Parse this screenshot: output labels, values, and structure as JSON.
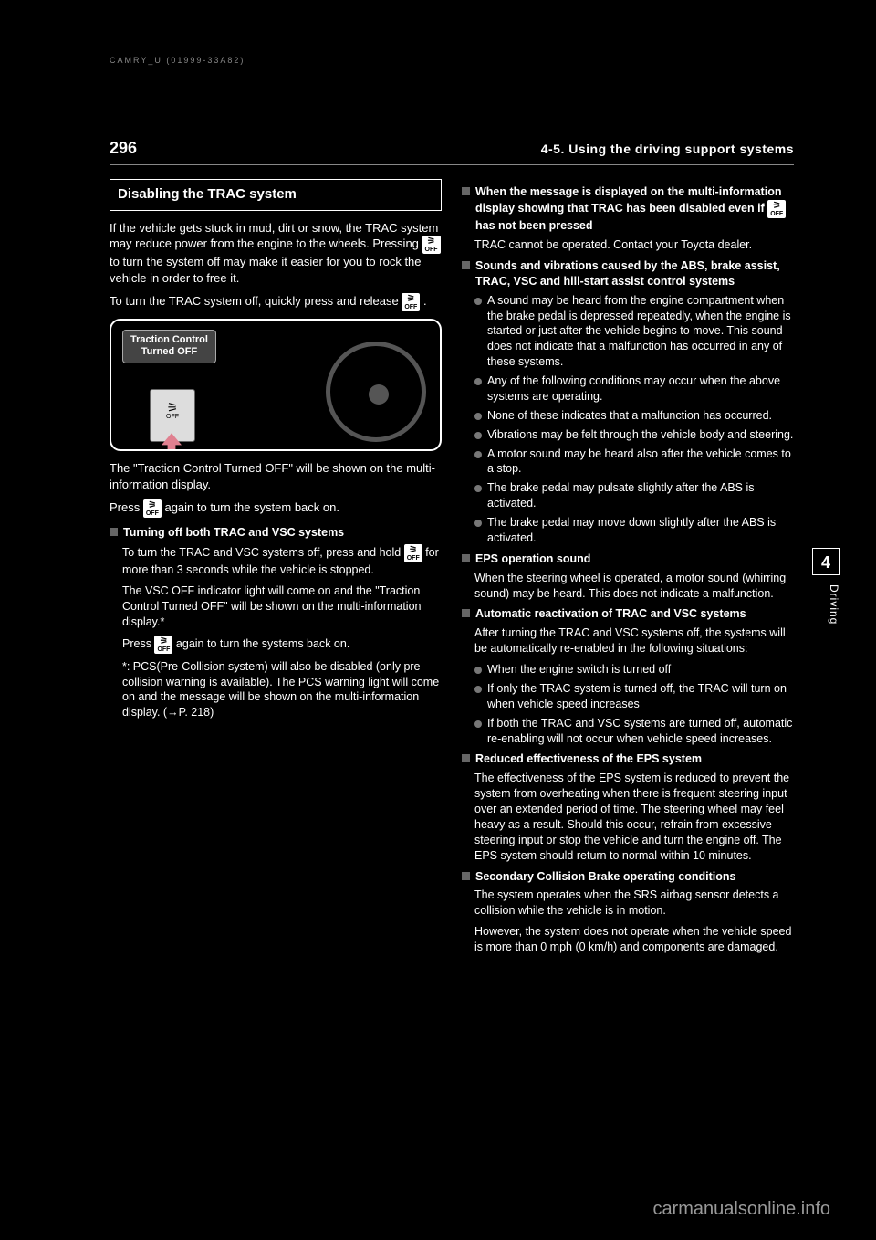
{
  "top_code": "CAMRY_U  (01999-33A82)",
  "page_number": "296",
  "header_title": "4-5. Using the driving support systems",
  "side_tab": "4",
  "side_tab_text": "Driving",
  "watermark": "carmanualsonline.info",
  "left": {
    "heading": "Disabling the TRAC system",
    "p1": "If the vehicle gets stuck in mud, dirt or snow, the TRAC system may reduce power from the engine to the wheels. Pressing ",
    "p1b": " to turn the system off may make it easier for you to rock the vehicle in order to free it.",
    "p2": "To turn the TRAC system off, quickly press and release ",
    "p2b": ".",
    "fig_label_1": "Traction Control",
    "fig_label_2": "Turned OFF",
    "fig_btn": "OFF",
    "p3": "The \"Traction Control Turned OFF\" will be shown on the multi-information display.",
    "p4a": "Press ",
    "p4b": " again to turn the system back on.",
    "sq1": "Turning off both TRAC and VSC systems",
    "sq1_body_a": "To turn the TRAC and VSC systems off, press and hold ",
    "sq1_body_b": " for more than 3 seconds while the vehicle is stopped.",
    "sq1_body_c": "The VSC OFF indicator light will come on and the \"Traction Control Turned OFF\" will be shown on the multi-information display.*",
    "sq1_body_d_a": "Press ",
    "sq1_body_d_b": " again to turn the systems back on.",
    "sq1_note": "*: PCS(Pre-Collision system) will also be disabled (only pre-collision warning is available). The PCS warning light will come on and the message will be shown on the multi-information display. (→P. 218)"
  },
  "right": {
    "sq1": "When the message is displayed on the multi-information display showing that TRAC has been disabled even if ",
    "sq1b": " has not been pressed",
    "sq1_body": "TRAC cannot be operated. Contact your Toyota dealer.",
    "sq2": "Sounds and vibrations caused by the ABS, brake assist, TRAC, VSC and hill-start assist control systems",
    "sq2_bullets": [
      "A sound may be heard from the engine compartment when the brake pedal is depressed repeatedly, when the engine is started or just after the vehicle begins to move. This sound does not indicate that a malfunction has occurred in any of these systems.",
      "Any of the following conditions may occur when the above systems are operating.",
      "None of these indicates that a malfunction has occurred."
    ],
    "sq2_sub": [
      "Vibrations may be felt through the vehicle body and steering.",
      "A motor sound may be heard also after the vehicle comes to a stop.",
      "The brake pedal may pulsate slightly after the ABS is activated.",
      "The brake pedal may move down slightly after the ABS is activated."
    ],
    "sq3": "EPS operation sound",
    "sq3_body": "When the steering wheel is operated, a motor sound (whirring sound) may be heard. This does not indicate a malfunction.",
    "sq4": "Automatic reactivation of TRAC and VSC systems",
    "sq4_body": "After turning the TRAC and VSC systems off, the systems will be automatically re-enabled in the following situations:",
    "sq4_bullets": [
      "When the engine switch is turned off",
      "If only the TRAC system is turned off, the TRAC will turn on when vehicle speed increases",
      "If both the TRAC and VSC systems are turned off, automatic re-enabling will not occur when vehicle speed increases."
    ],
    "sq5": "Reduced effectiveness of the EPS system",
    "sq5_body": "The effectiveness of the EPS system is reduced to prevent the system from overheating when there is frequent steering input over an extended period of time. The steering wheel may feel heavy as a result. Should this occur, refrain from excessive steering input or stop the vehicle and turn the engine off. The EPS system should return to normal within 10 minutes.",
    "sq6": "Secondary Collision Brake operating conditions",
    "sq6_body": "The system operates when the SRS airbag sensor detects a collision while the vehicle is in motion.",
    "sq6_body2": "However, the system does not operate when the vehicle speed is more than 0 mph (0 km/h) and components are damaged."
  }
}
